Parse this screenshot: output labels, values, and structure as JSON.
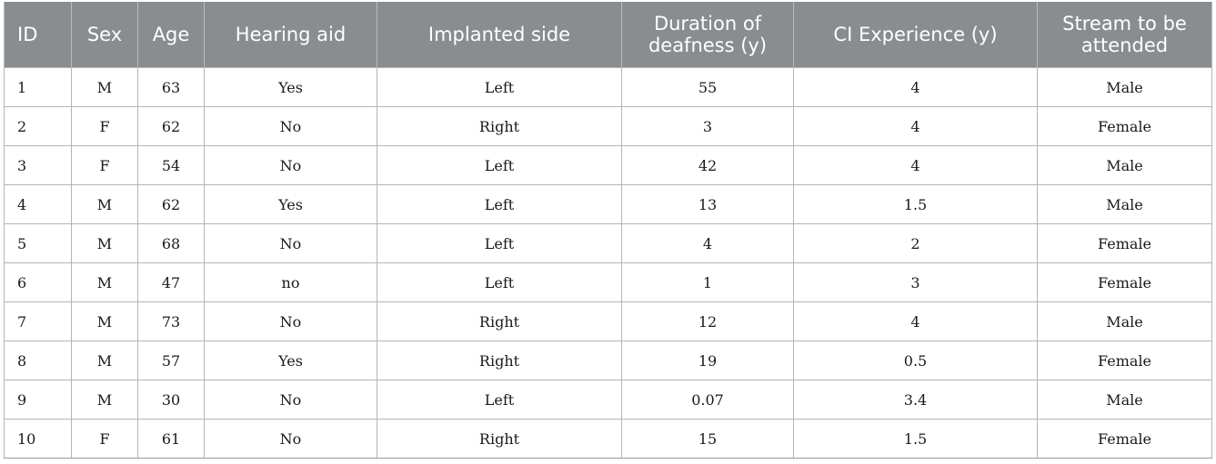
{
  "table": {
    "headers": [
      "ID",
      "Sex",
      "Age",
      "Hearing aid",
      "Implanted side",
      "Duration of deafness (y)",
      "CI Experience (y)",
      "Stream to be attended"
    ],
    "rows": [
      [
        "1",
        "M",
        "63",
        "Yes",
        "Left",
        "55",
        "4",
        "Male"
      ],
      [
        "2",
        "F",
        "62",
        "No",
        "Right",
        "3",
        "4",
        "Female"
      ],
      [
        "3",
        "F",
        "54",
        "No",
        "Left",
        "42",
        "4",
        "Male"
      ],
      [
        "4",
        "M",
        "62",
        "Yes",
        "Left",
        "13",
        "1.5",
        "Male"
      ],
      [
        "5",
        "M",
        "68",
        "No",
        "Left",
        "4",
        "2",
        "Female"
      ],
      [
        "6",
        "M",
        "47",
        "no",
        "Left",
        "1",
        "3",
        "Female"
      ],
      [
        "7",
        "M",
        "73",
        "No",
        "Right",
        "12",
        "4",
        "Male"
      ],
      [
        "8",
        "M",
        "57",
        "Yes",
        "Right",
        "19",
        "0.5",
        "Female"
      ],
      [
        "9",
        "M",
        "30",
        "No",
        "Left",
        "0.07",
        "3.4",
        "Male"
      ],
      [
        "10",
        "F",
        "61",
        "No",
        "Right",
        "15",
        "1.5",
        "Female"
      ]
    ]
  },
  "colors": {
    "header_background": "#8a8d8f",
    "header_text": "#ffffff",
    "grid_line": "#b5b5b5"
  }
}
